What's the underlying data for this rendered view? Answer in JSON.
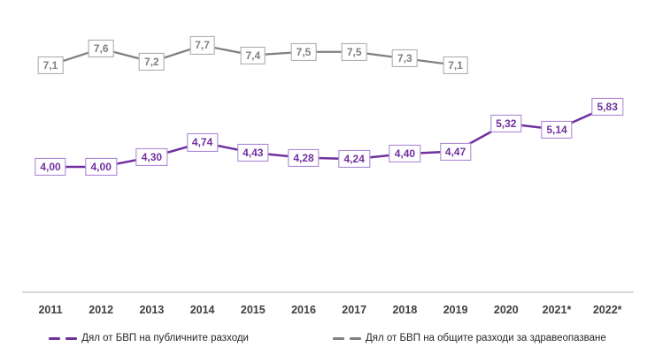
{
  "chart_data": {
    "type": "line",
    "categories": [
      "2011",
      "2012",
      "2013",
      "2014",
      "2015",
      "2016",
      "2017",
      "2018",
      "2019",
      "2020",
      "2021*",
      "2022*"
    ],
    "series": [
      {
        "name": "Дял от БВП на публичните разходи",
        "values": [
          4.0,
          4.0,
          4.3,
          4.74,
          4.43,
          4.28,
          4.24,
          4.4,
          4.47,
          5.32,
          5.14,
          5.83
        ],
        "labels": [
          "4,00",
          "4,00",
          "4,30",
          "4,74",
          "4,43",
          "4,28",
          "4,24",
          "4,40",
          "4,47",
          "5,32",
          "5,14",
          "5,83"
        ],
        "color": "#7030A0",
        "label_box_border": "#A57FD2"
      },
      {
        "name": "Дял от БВП на общите разходи за здравеопазване",
        "values": [
          7.1,
          7.6,
          7.2,
          7.7,
          7.4,
          7.5,
          7.5,
          7.3,
          7.1
        ],
        "labels": [
          "7,1",
          "7,6",
          "7,2",
          "7,7",
          "7,4",
          "7,5",
          "7,5",
          "7,3",
          "7,1"
        ],
        "color": "#808080",
        "label_box_border": "#A6A6A6"
      }
    ],
    "title": "",
    "xlabel": "",
    "ylabel": "",
    "grid": false,
    "legend_position": "bottom",
    "data_labels": "boxed values centered on each point",
    "axis_line_color": "#D9D9D9",
    "x_tick_color": "#3f3f3f"
  }
}
